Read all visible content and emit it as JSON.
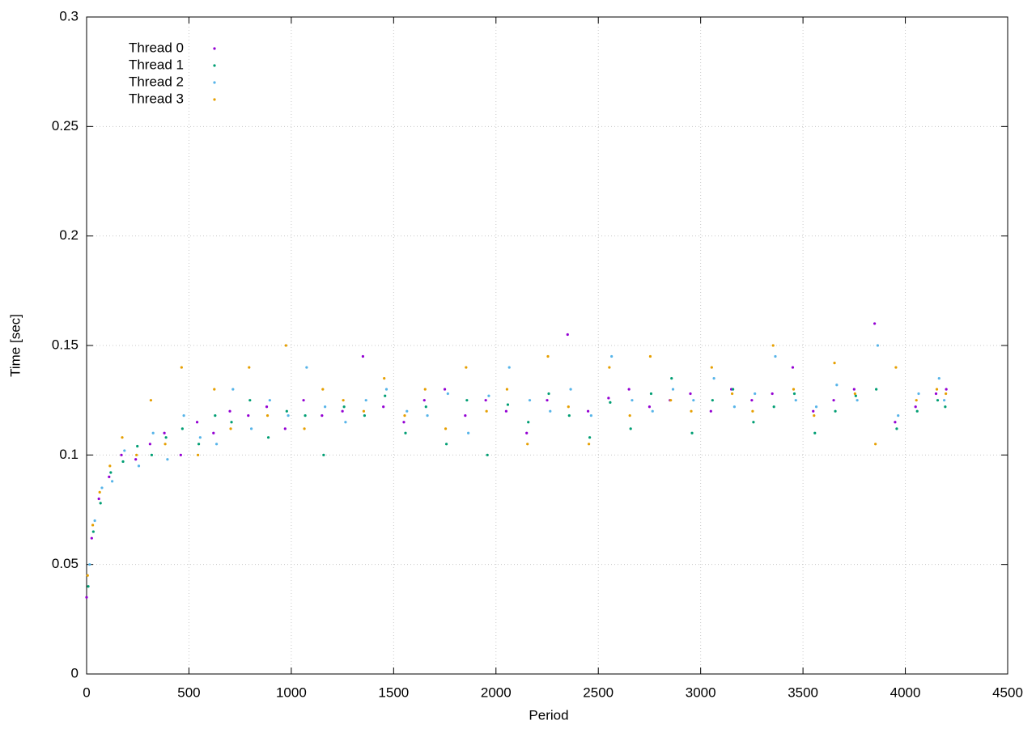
{
  "chart_data": {
    "type": "scatter",
    "xlabel": "Period",
    "ylabel": "Time [sec]",
    "xlim": [
      0,
      4500
    ],
    "xticks": [
      0,
      500,
      1000,
      1500,
      2000,
      2500,
      3000,
      3500,
      4000,
      4500
    ],
    "ylim": [
      0,
      0.3
    ],
    "yticks": [
      0,
      0.05,
      0.1,
      0.15,
      0.2,
      0.25,
      0.3
    ],
    "grid": true,
    "legend": "top-left",
    "series": [
      {
        "name": "Thread 0",
        "color": "#9400d3",
        "x": [
          0,
          25,
          60,
          110,
          170,
          240,
          310,
          380,
          460,
          540,
          620,
          700,
          790,
          880,
          970,
          1060,
          1150,
          1250,
          1350,
          1450,
          1550,
          1650,
          1750,
          1850,
          1950,
          2050,
          2150,
          2250,
          2350,
          2450,
          2550,
          2650,
          2750,
          2850,
          2950,
          3050,
          3150,
          3250,
          3350,
          3450,
          3550,
          3650,
          3750,
          3850,
          3950,
          4050,
          4150,
          4200
        ],
        "values": [
          0.035,
          0.062,
          0.08,
          0.09,
          0.1,
          0.098,
          0.105,
          0.11,
          0.1,
          0.115,
          0.11,
          0.12,
          0.118,
          0.122,
          0.112,
          0.125,
          0.118,
          0.12,
          0.145,
          0.122,
          0.115,
          0.125,
          0.13,
          0.118,
          0.125,
          0.12,
          0.11,
          0.125,
          0.155,
          0.12,
          0.126,
          0.13,
          0.122,
          0.125,
          0.128,
          0.12,
          0.13,
          0.125,
          0.128,
          0.14,
          0.12,
          0.125,
          0.13,
          0.16,
          0.115,
          0.122,
          0.128,
          0.13
        ]
      },
      {
        "name": "Thread 1",
        "color": "#009e73",
        "x": [
          8,
          33,
          68,
          118,
          178,
          248,
          318,
          388,
          468,
          548,
          628,
          708,
          798,
          888,
          978,
          1068,
          1158,
          1258,
          1358,
          1458,
          1558,
          1658,
          1758,
          1858,
          1958,
          2058,
          2158,
          2258,
          2358,
          2458,
          2558,
          2658,
          2758,
          2858,
          2958,
          3058,
          3158,
          3258,
          3358,
          3458,
          3558,
          3658,
          3758,
          3858,
          3958,
          4058,
          4158,
          4195
        ],
        "values": [
          0.04,
          0.065,
          0.078,
          0.092,
          0.097,
          0.104,
          0.1,
          0.108,
          0.112,
          0.105,
          0.118,
          0.115,
          0.125,
          0.108,
          0.12,
          0.118,
          0.1,
          0.122,
          0.118,
          0.127,
          0.11,
          0.122,
          0.105,
          0.125,
          0.1,
          0.123,
          0.115,
          0.128,
          0.118,
          0.108,
          0.124,
          0.112,
          0.128,
          0.135,
          0.11,
          0.125,
          0.13,
          0.115,
          0.122,
          0.128,
          0.11,
          0.12,
          0.127,
          0.13,
          0.112,
          0.12,
          0.125,
          0.122
        ]
      },
      {
        "name": "Thread 2",
        "color": "#56b4e9",
        "x": [
          15,
          40,
          75,
          125,
          185,
          255,
          325,
          395,
          475,
          555,
          635,
          715,
          805,
          895,
          985,
          1075,
          1165,
          1265,
          1365,
          1465,
          1565,
          1665,
          1765,
          1865,
          1965,
          2065,
          2165,
          2265,
          2365,
          2465,
          2565,
          2665,
          2765,
          2865,
          2965,
          3065,
          3165,
          3265,
          3365,
          3465,
          3565,
          3665,
          3765,
          3865,
          3965,
          4065,
          4165,
          4190
        ],
        "values": [
          0.05,
          0.07,
          0.085,
          0.088,
          0.102,
          0.095,
          0.11,
          0.098,
          0.118,
          0.108,
          0.105,
          0.13,
          0.112,
          0.125,
          0.118,
          0.14,
          0.122,
          0.115,
          0.125,
          0.13,
          0.12,
          0.118,
          0.128,
          0.11,
          0.127,
          0.14,
          0.125,
          0.12,
          0.13,
          0.118,
          0.145,
          0.125,
          0.12,
          0.13,
          0.125,
          0.135,
          0.122,
          0.128,
          0.145,
          0.125,
          0.122,
          0.132,
          0.125,
          0.15,
          0.118,
          0.128,
          0.135,
          0.125
        ]
      },
      {
        "name": "Thread 3",
        "color": "#e69f00",
        "x": [
          5,
          30,
          64,
          114,
          174,
          244,
          314,
          384,
          464,
          544,
          624,
          704,
          794,
          884,
          974,
          1064,
          1154,
          1254,
          1354,
          1454,
          1554,
          1654,
          1754,
          1854,
          1954,
          2054,
          2154,
          2254,
          2354,
          2454,
          2554,
          2654,
          2754,
          2854,
          2954,
          3054,
          3154,
          3254,
          3354,
          3454,
          3554,
          3654,
          3754,
          3854,
          3954,
          4054,
          4154,
          4198
        ],
        "values": [
          0.045,
          0.068,
          0.083,
          0.095,
          0.108,
          0.1,
          0.125,
          0.105,
          0.14,
          0.1,
          0.13,
          0.112,
          0.14,
          0.118,
          0.15,
          0.112,
          0.13,
          0.125,
          0.12,
          0.135,
          0.118,
          0.13,
          0.112,
          0.14,
          0.12,
          0.13,
          0.105,
          0.145,
          0.122,
          0.105,
          0.14,
          0.118,
          0.145,
          0.125,
          0.12,
          0.14,
          0.128,
          0.12,
          0.15,
          0.13,
          0.118,
          0.142,
          0.128,
          0.105,
          0.14,
          0.125,
          0.13,
          0.128
        ]
      }
    ]
  }
}
